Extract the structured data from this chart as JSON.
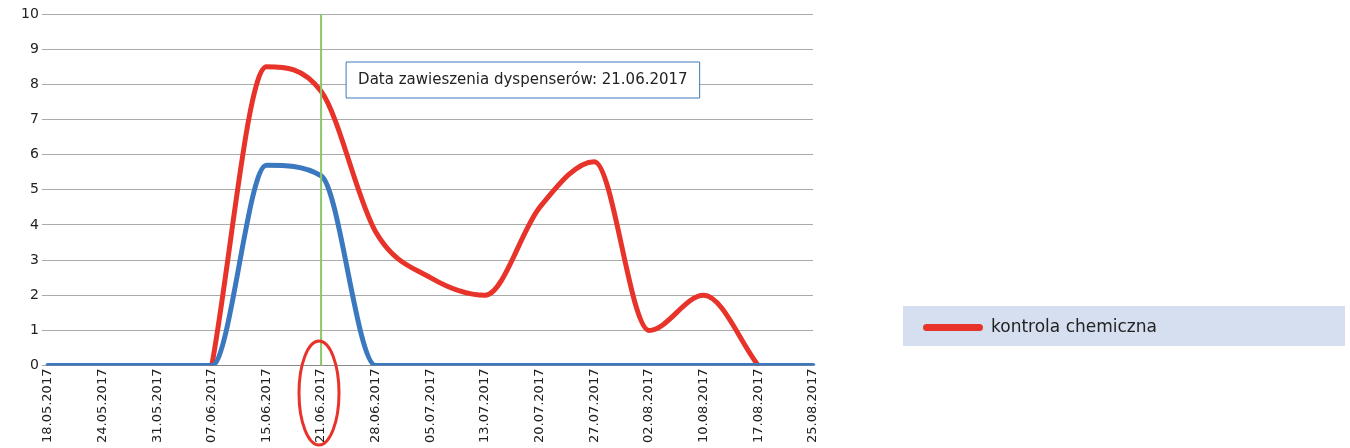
{
  "chart_data": {
    "type": "line",
    "categories": [
      "18.05.2017",
      "24.05.2017",
      "31.05.2017",
      "07.06.2017",
      "15.06.2017",
      "21.06.2017",
      "28.06.2017",
      "05.07.2017",
      "13.07.2017",
      "20.07.2017",
      "27.07.2017",
      "02.08.2017",
      "10.08.2017",
      "17.08.2017",
      "25.08.2017"
    ],
    "series": [
      {
        "name": "kontrola chemiczna",
        "color": "#e8332a",
        "values": [
          null,
          null,
          null,
          0,
          8.5,
          7.8,
          3.8,
          2.5,
          2.0,
          4.5,
          5.8,
          1.0,
          2.0,
          0,
          null
        ]
      },
      {
        "color": "#3a78bf",
        "values": [
          0,
          0,
          0,
          0,
          5.7,
          5.4,
          0,
          0,
          0,
          0,
          0,
          0,
          0,
          0,
          0
        ]
      }
    ],
    "ylim": [
      0,
      10
    ],
    "yticks": [
      0,
      1,
      2,
      3,
      4,
      5,
      6,
      7,
      8,
      9,
      10
    ],
    "grid": "y",
    "legend": "right",
    "marker": "none",
    "line_style": "solid",
    "ref_lines": [
      {
        "axis": "x",
        "value": "21.06.2017",
        "label": "Data zawieszenia dyspenserów: 21.06.2017",
        "color": "#8cc66a"
      }
    ]
  }
}
